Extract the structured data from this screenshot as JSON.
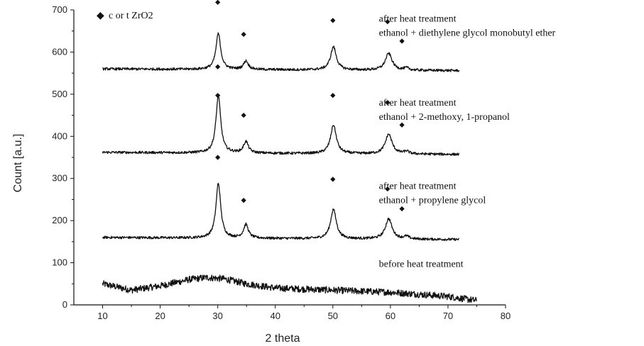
{
  "chart_data": {
    "type": "line",
    "title": "",
    "xlabel": "2 theta",
    "ylabel": "Count [a.u.]",
    "xlim": [
      5,
      80
    ],
    "ylim": [
      0,
      700
    ],
    "x_ticks": [
      10,
      20,
      30,
      40,
      50,
      60,
      70,
      80
    ],
    "y_ticks": [
      0,
      100,
      200,
      300,
      400,
      500,
      600,
      700
    ],
    "legend": {
      "symbol": "◆",
      "label": "c or t ZrO2",
      "placement": "top-left"
    },
    "series": [
      {
        "labels": [
          "before heat treatment"
        ],
        "x_range": [
          10,
          75
        ],
        "baseline_points": [
          [
            10,
            50
          ],
          [
            15,
            35
          ],
          [
            20,
            45
          ],
          [
            25,
            60
          ],
          [
            28,
            65
          ],
          [
            31,
            62
          ],
          [
            35,
            50
          ],
          [
            40,
            40
          ],
          [
            50,
            35
          ],
          [
            60,
            30
          ],
          [
            70,
            20
          ],
          [
            75,
            10
          ]
        ],
        "peaks": [],
        "noise": 8,
        "label_anchor": [
          58,
          90
        ],
        "marker_points": []
      },
      {
        "labels": [
          "after heat treatment",
          "ethanol + propylene glycol"
        ],
        "x_range": [
          10,
          72
        ],
        "baseline_points": [
          [
            10,
            160
          ],
          [
            72,
            155
          ]
        ],
        "peaks": [
          [
            30.1,
            130,
            0.5
          ],
          [
            34.9,
            32,
            0.5
          ],
          [
            50.1,
            70,
            0.6
          ],
          [
            59.7,
            48,
            0.7
          ],
          [
            62.8,
            6,
            0.5
          ]
        ],
        "noise": 3,
        "label_anchor": [
          58,
          275
        ],
        "marker_points": [
          [
            30,
            350
          ],
          [
            34.5,
            248
          ],
          [
            50,
            298
          ],
          [
            59.5,
            275
          ],
          [
            62,
            228
          ]
        ]
      },
      {
        "labels": [
          "after heat treatment",
          "ethanol + 2-methoxy, 1-propanol"
        ],
        "x_range": [
          10,
          72
        ],
        "baseline_points": [
          [
            10,
            362
          ],
          [
            72,
            357
          ]
        ],
        "peaks": [
          [
            30.1,
            135,
            0.5
          ],
          [
            34.9,
            27,
            0.5
          ],
          [
            50.1,
            68,
            0.6
          ],
          [
            59.7,
            47,
            0.7
          ],
          [
            62.8,
            6,
            0.5
          ]
        ],
        "noise": 3,
        "label_anchor": [
          58,
          473
        ],
        "marker_points": [
          [
            30,
            497
          ],
          [
            34.5,
            450
          ],
          [
            50,
            497
          ],
          [
            59.5,
            480
          ],
          [
            62,
            427
          ]
        ]
      },
      {
        "labels": [
          "after heat treatment",
          "ethanol + diethylene glycol monobutyl ether"
        ],
        "x_range": [
          10,
          72
        ],
        "baseline_points": [
          [
            10,
            560
          ],
          [
            72,
            556
          ]
        ],
        "peaks": [
          [
            30.1,
            85,
            0.5
          ],
          [
            34.9,
            20,
            0.5
          ],
          [
            50.1,
            55,
            0.6
          ],
          [
            59.7,
            40,
            0.7
          ],
          [
            62.8,
            5,
            0.5
          ]
        ],
        "noise": 3,
        "label_anchor": [
          58,
          672
        ],
        "marker_points": [
          [
            30,
            565
          ],
          [
            30,
            718
          ],
          [
            34.5,
            642
          ],
          [
            50,
            675
          ],
          [
            59.5,
            672
          ],
          [
            62,
            626
          ]
        ]
      }
    ]
  }
}
